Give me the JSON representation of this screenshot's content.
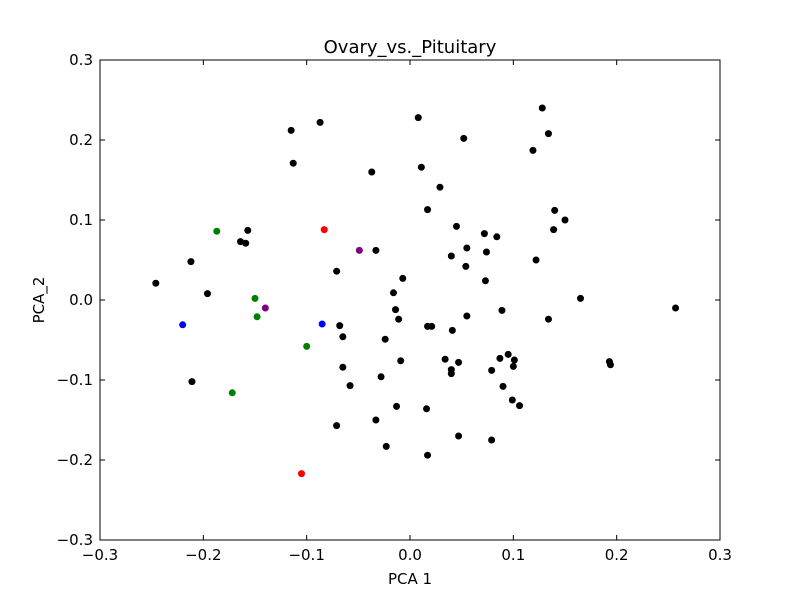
{
  "chart_data": {
    "type": "scatter",
    "title": "Ovary_vs._Pituitary",
    "xlabel": "PCA 1",
    "ylabel": "PCA_2",
    "xlim": [
      -0.3,
      0.3
    ],
    "ylim": [
      -0.3,
      0.3
    ],
    "xticks": [
      -0.3,
      -0.2,
      -0.1,
      0.0,
      0.1,
      0.2,
      0.3
    ],
    "yticks": [
      -0.3,
      -0.2,
      -0.1,
      0.0,
      0.1,
      0.2,
      0.3
    ],
    "xtick_labels": [
      "−0.3",
      "−0.2",
      "−0.1",
      "0.0",
      "0.1",
      "0.2",
      "0.3"
    ],
    "ytick_labels": [
      "−0.3",
      "−0.2",
      "−0.1",
      "0.0",
      "0.1",
      "0.2",
      "0.3"
    ],
    "grid": false,
    "legend": "none",
    "series": [
      {
        "color": "#000000",
        "points": [
          [
            -0.246,
            0.021
          ],
          [
            -0.212,
            0.048
          ],
          [
            -0.211,
            -0.102
          ],
          [
            -0.196,
            0.008
          ],
          [
            -0.164,
            0.073
          ],
          [
            -0.159,
            0.071
          ],
          [
            -0.157,
            0.087
          ],
          [
            -0.115,
            0.212
          ],
          [
            -0.113,
            0.171
          ],
          [
            -0.087,
            0.222
          ],
          [
            -0.071,
            0.036
          ],
          [
            -0.068,
            -0.032
          ],
          [
            -0.065,
            -0.046
          ],
          [
            -0.065,
            -0.084
          ],
          [
            -0.071,
            -0.157
          ],
          [
            -0.058,
            -0.107
          ],
          [
            -0.037,
            0.16
          ],
          [
            -0.033,
            0.062
          ],
          [
            -0.033,
            -0.15
          ],
          [
            -0.028,
            -0.096
          ],
          [
            -0.024,
            -0.049
          ],
          [
            -0.023,
            -0.183
          ],
          [
            -0.016,
            0.009
          ],
          [
            -0.014,
            -0.012
          ],
          [
            -0.013,
            -0.133
          ],
          [
            -0.011,
            -0.024
          ],
          [
            -0.009,
            -0.076
          ],
          [
            -0.007,
            0.027
          ],
          [
            0.008,
            0.228
          ],
          [
            0.011,
            0.166
          ],
          [
            0.017,
            0.113
          ],
          [
            0.017,
            -0.033
          ],
          [
            0.021,
            -0.033
          ],
          [
            0.016,
            -0.136
          ],
          [
            0.017,
            -0.194
          ],
          [
            0.029,
            0.141
          ],
          [
            0.034,
            -0.074
          ],
          [
            0.04,
            0.055
          ],
          [
            0.04,
            -0.087
          ],
          [
            0.04,
            -0.092
          ],
          [
            0.041,
            -0.038
          ],
          [
            0.045,
            0.092
          ],
          [
            0.047,
            -0.078
          ],
          [
            0.047,
            -0.17
          ],
          [
            0.052,
            0.202
          ],
          [
            0.054,
            0.042
          ],
          [
            0.055,
            0.065
          ],
          [
            0.055,
            -0.02
          ],
          [
            0.072,
            0.083
          ],
          [
            0.073,
            0.024
          ],
          [
            0.074,
            0.06
          ],
          [
            0.079,
            -0.088
          ],
          [
            0.079,
            -0.175
          ],
          [
            0.084,
            0.079
          ],
          [
            0.087,
            -0.073
          ],
          [
            0.089,
            -0.013
          ],
          [
            0.09,
            -0.108
          ],
          [
            0.095,
            -0.068
          ],
          [
            0.099,
            -0.125
          ],
          [
            0.101,
            -0.075
          ],
          [
            0.1,
            -0.083
          ],
          [
            0.106,
            -0.132
          ],
          [
            0.119,
            0.187
          ],
          [
            0.122,
            0.05
          ],
          [
            0.128,
            0.24
          ],
          [
            0.134,
            0.208
          ],
          [
            0.134,
            -0.024
          ],
          [
            0.139,
            0.088
          ],
          [
            0.14,
            0.112
          ],
          [
            0.15,
            0.1
          ],
          [
            0.165,
            0.002
          ],
          [
            0.193,
            -0.077
          ],
          [
            0.194,
            -0.081
          ],
          [
            0.257,
            -0.01
          ]
        ]
      },
      {
        "color": "#008000",
        "points": [
          [
            -0.187,
            0.086
          ],
          [
            -0.15,
            0.002
          ],
          [
            -0.148,
            -0.021
          ],
          [
            -0.1,
            -0.058
          ],
          [
            -0.172,
            -0.116
          ]
        ]
      },
      {
        "color": "#0000ff",
        "points": [
          [
            -0.22,
            -0.031
          ],
          [
            -0.085,
            -0.03
          ]
        ]
      },
      {
        "color": "#ff0000",
        "points": [
          [
            -0.083,
            0.088
          ],
          [
            -0.105,
            -0.217
          ]
        ]
      },
      {
        "color": "#800080",
        "points": [
          [
            -0.049,
            0.062
          ],
          [
            -0.14,
            -0.01
          ]
        ]
      }
    ]
  }
}
